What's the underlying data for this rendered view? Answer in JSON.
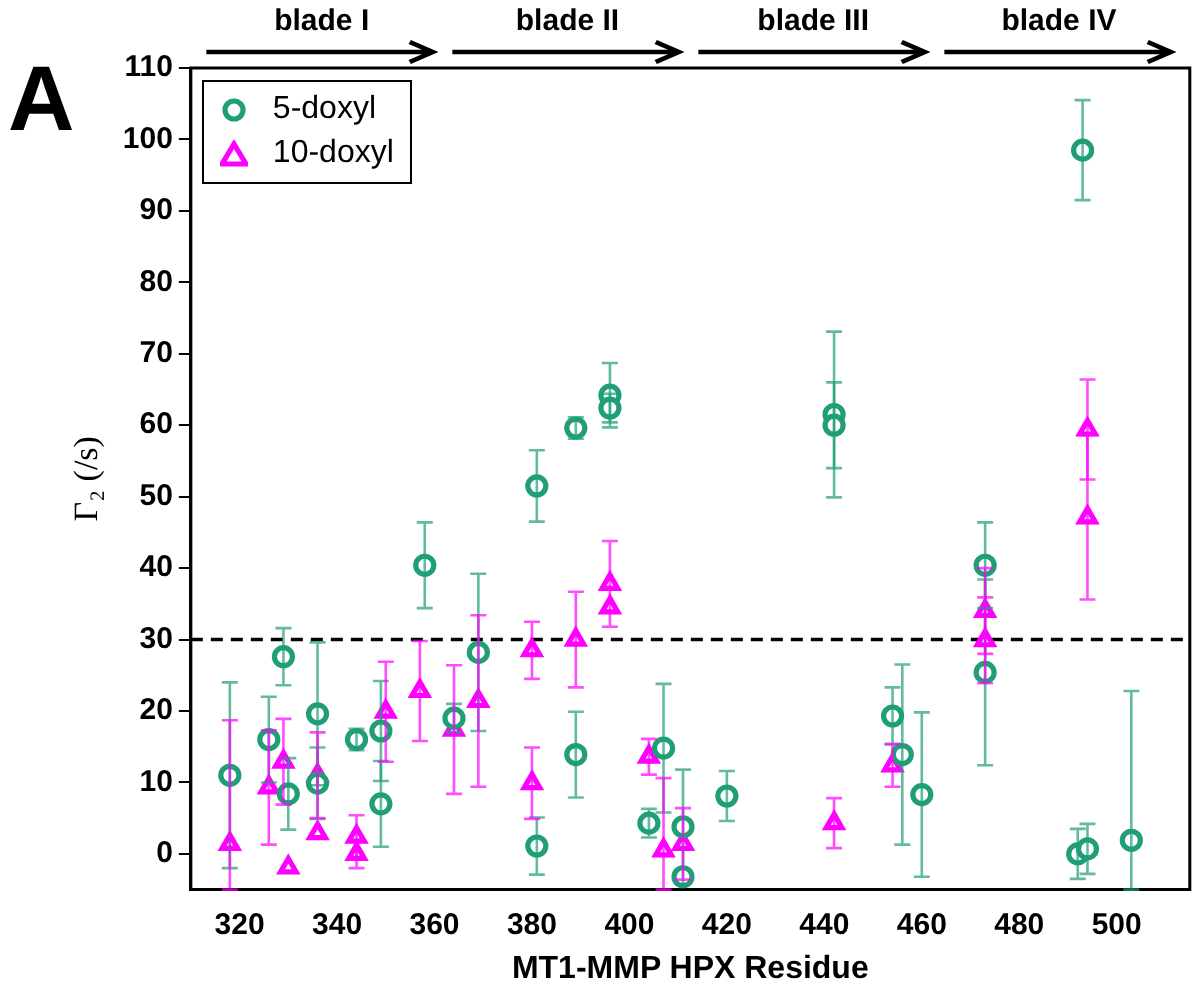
{
  "chart_data": {
    "type": "scatter",
    "xlabel": "MT1-MMP HPX Residue",
    "ylabel": "Γ₂ (/s)",
    "annotations": [
      "A",
      "blade I",
      "blade II",
      "blade III",
      "blade IV"
    ],
    "xlim": [
      310,
      515
    ],
    "xticks": [
      320,
      340,
      360,
      380,
      400,
      420,
      440,
      460,
      480,
      500
    ],
    "ylim": [
      -5,
      110
    ],
    "yticks": [
      0,
      10,
      20,
      30,
      40,
      50,
      60,
      70,
      80,
      90,
      100,
      110
    ],
    "grid": false,
    "legend": "top left",
    "ref_lines": [
      {
        "axis": "y",
        "value": 30,
        "color": "#000000",
        "line_style": "dashed"
      }
    ],
    "series": [
      {
        "name": "5-doxyl",
        "color": "#1f9e77",
        "marker": "circle",
        "x": [
          318,
          326,
          329,
          330,
          336,
          336,
          344,
          349,
          349,
          358,
          364,
          369,
          381,
          381,
          389,
          389,
          396,
          396,
          404,
          407,
          411,
          411,
          420,
          442,
          442,
          454,
          456,
          460,
          473,
          473,
          493,
          492,
          494,
          503
        ],
        "values": [
          11.0,
          16.0,
          27.6,
          8.4,
          19.6,
          9.9,
          16.0,
          17.2,
          7.0,
          40.4,
          19.0,
          28.2,
          51.5,
          1.1,
          13.9,
          59.6,
          64.2,
          62.4,
          4.3,
          14.8,
          3.8,
          -3.2,
          8.1,
          61.5,
          60.0,
          19.3,
          13.9,
          8.3,
          40.4,
          25.4,
          98.5,
          0.0,
          0.7,
          1.9
        ],
        "errors": [
          13,
          6,
          4,
          5,
          10,
          5,
          1.5,
          7,
          6,
          6,
          2,
          11,
          5,
          4,
          6,
          1.5,
          4.5,
          2,
          2,
          9,
          8,
          null,
          3.5,
          11.6,
          6,
          4,
          12.6,
          11.5,
          6,
          13,
          7,
          3.5,
          3.5,
          [
            -5,
            22.8
          ]
        ]
      },
      {
        "name": "10-doxyl",
        "color": "#ff00ff",
        "marker": "triangle",
        "x": [
          318,
          326,
          329,
          330,
          336,
          336,
          344,
          344,
          350,
          357,
          364,
          369,
          380,
          380,
          389,
          396,
          396,
          404,
          407,
          411,
          442,
          454,
          473,
          473,
          494,
          494
        ],
        "values": [
          1.4,
          9.3,
          12.9,
          -1.9,
          11.0,
          2.9,
          2.4,
          0,
          19.9,
          22.8,
          17.4,
          21.4,
          28.5,
          9.9,
          30.0,
          37.8,
          34.5,
          13.6,
          0.5,
          1.4,
          4.3,
          12.4,
          34.0,
          29.9,
          59.4,
          47.1
        ],
        "errors": [
          [
            -5,
            18.7
          ],
          8,
          6,
          null,
          6,
          null,
          3,
          2,
          7,
          7,
          9,
          12,
          4,
          5,
          6.7,
          6,
          null,
          2.5,
          [
            -5,
            10.6
          ],
          5,
          3.5,
          3,
          6,
          6,
          7,
          11.5
        ]
      }
    ]
  }
}
